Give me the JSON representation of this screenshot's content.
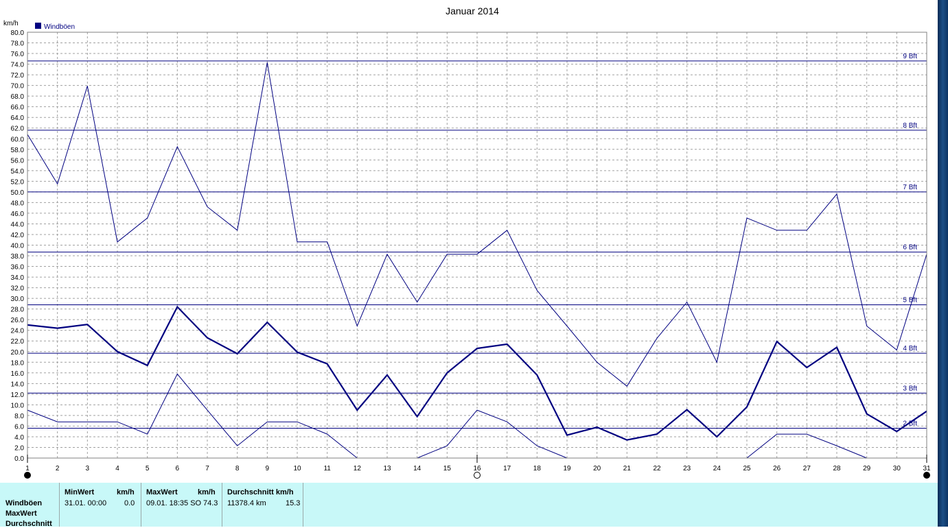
{
  "chart_data": {
    "type": "line",
    "title": "Januar 2014",
    "ylabel": "km/h",
    "xlabel": "",
    "ylim": [
      0,
      80
    ],
    "ytick_step": 2,
    "grid": true,
    "legend": {
      "placement": "top-left",
      "label": "Windböen",
      "color": "#000080"
    },
    "x": [
      1,
      2,
      3,
      4,
      5,
      6,
      7,
      8,
      9,
      10,
      11,
      12,
      13,
      14,
      15,
      16,
      17,
      18,
      19,
      20,
      21,
      22,
      23,
      24,
      25,
      26,
      27,
      28,
      29,
      30,
      31
    ],
    "series": [
      {
        "name": "Windböen",
        "role": "max",
        "color": "#000080",
        "values": [
          60.8,
          51.5,
          69.9,
          40.6,
          45.1,
          58.5,
          47.2,
          42.8,
          74.3,
          40.6,
          40.6,
          24.8,
          38.3,
          29.3,
          38.3,
          38.3,
          42.8,
          31.5,
          24.8,
          18.0,
          13.5,
          22.5,
          29.3,
          18.0,
          45.1,
          42.8,
          42.8,
          49.6,
          24.8,
          20.3,
          38.3
        ]
      },
      {
        "name": "Durchschnitt",
        "role": "avg",
        "color": "#000080",
        "values": [
          25.0,
          24.4,
          25.1,
          20.0,
          17.4,
          28.4,
          22.6,
          19.6,
          25.5,
          19.9,
          17.7,
          9.0,
          15.6,
          7.8,
          16.0,
          20.6,
          21.4,
          15.6,
          4.3,
          5.8,
          3.4,
          4.5,
          9.1,
          4.0,
          9.6,
          21.9,
          17.0,
          20.8,
          8.3,
          5.0,
          8.8
        ]
      },
      {
        "name": "MinWert",
        "role": "min",
        "color": "#000080",
        "values": [
          9.0,
          6.8,
          6.8,
          6.8,
          4.5,
          15.8,
          9.0,
          2.3,
          6.8,
          6.8,
          4.5,
          0.0,
          null,
          0.0,
          2.3,
          9.0,
          6.8,
          2.3,
          0.0,
          null,
          null,
          null,
          null,
          null,
          0.0,
          4.5,
          4.5,
          2.3,
          0.0,
          null,
          null
        ]
      }
    ],
    "beaufort_lines": [
      {
        "label": "2 Bft",
        "value": 5.6
      },
      {
        "label": "3 Bft",
        "value": 12.2
      },
      {
        "label": "4 Bft",
        "value": 19.7
      },
      {
        "label": "5 Bft",
        "value": 28.8
      },
      {
        "label": "6 Bft",
        "value": 38.7
      },
      {
        "label": "7 Bft",
        "value": 50.0
      },
      {
        "label": "8 Bft",
        "value": 61.6
      },
      {
        "label": "9 Bft",
        "value": 74.6
      }
    ],
    "moon_phases": [
      {
        "day": 1,
        "phase": "new"
      },
      {
        "day": 16,
        "phase": "full"
      },
      {
        "day": 31,
        "phase": "new"
      }
    ]
  },
  "stats": {
    "row_labels": [
      "Windböen",
      "MaxWert",
      "Durchschnitt"
    ],
    "min_header": "MinWert",
    "min_unit": "km/h",
    "min_date": "31.01.  00:00",
    "min_value": "0.0",
    "max_header": "MaxWert",
    "max_unit": "km/h",
    "max_date": "09.01.  18:35 SO",
    "max_value": "74.3",
    "avg_header": "Durchschnitt km/h",
    "avg_distance": "11378.4 km",
    "avg_value": "15.3"
  }
}
